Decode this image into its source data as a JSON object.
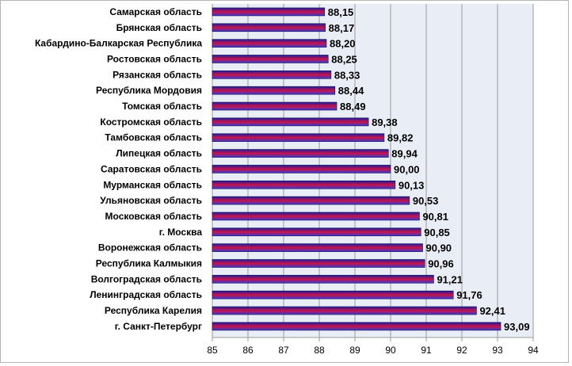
{
  "chart_data": {
    "type": "bar",
    "orientation": "horizontal",
    "categories": [
      "Самарская область",
      "Брянская область",
      "Кабардино-Балкарская Республика",
      "Ростовская область",
      "Рязанская область",
      "Республика Мордовия",
      "Томская область",
      "Костромская область",
      "Тамбовская область",
      "Липецкая область",
      "Саратовская область",
      "Мурманская область",
      "Ульяновская область",
      "Московская область",
      "г. Москва",
      "Воронежская область",
      "Республика Калмыкия",
      "Волгоградская область",
      "Ленинградская область",
      "Республика Карелия",
      "г. Санкт-Петербург"
    ],
    "values": [
      88.15,
      88.17,
      88.2,
      88.25,
      88.33,
      88.44,
      88.49,
      89.38,
      89.82,
      89.94,
      90.0,
      90.13,
      90.53,
      90.81,
      90.85,
      90.9,
      90.96,
      91.21,
      91.76,
      92.41,
      93.09
    ],
    "value_labels": [
      "88,15",
      "88,17",
      "88,20",
      "88,25",
      "88,33",
      "88,44",
      "88,49",
      "89,38",
      "89,82",
      "89,94",
      "90,00",
      "90,13",
      "90,53",
      "90,81",
      "90,85",
      "90,90",
      "90,96",
      "91,21",
      "91,76",
      "92,41",
      "93,09"
    ],
    "xlim": [
      85,
      94
    ],
    "x_ticks": [
      "85",
      "86",
      "87",
      "88",
      "89",
      "90",
      "91",
      "92",
      "93",
      "94"
    ],
    "grid": "vertical",
    "legend": "none",
    "colors": {
      "plot_background": "#e9edf6",
      "gridline": "#9a9a9a",
      "bar_top": "#1d1d9e",
      "bar_mid": "#c8124a",
      "bar_bottom": "#3a3ad0",
      "bar_outline": "#10105a"
    }
  }
}
